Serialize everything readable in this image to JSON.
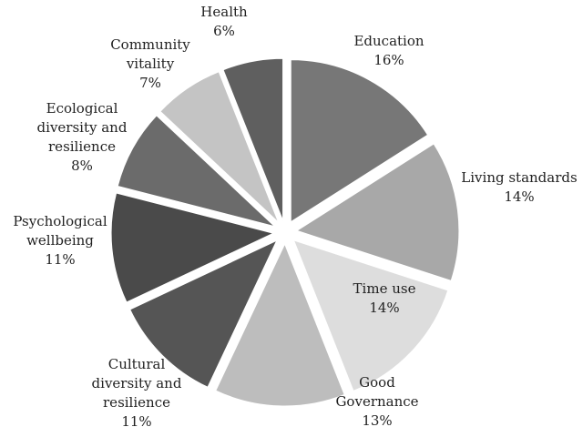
{
  "chart_data": {
    "type": "pie",
    "exploded": true,
    "title": "",
    "slices": [
      {
        "name": "Education",
        "label_lines": [
          "Education"
        ],
        "value_label": "16%",
        "value": 16,
        "color": "#777777"
      },
      {
        "name": "Living standards",
        "label_lines": [
          "Living standards"
        ],
        "value_label": "14%",
        "value": 14,
        "color": "#a8a8a8"
      },
      {
        "name": "Time use",
        "label_lines": [
          "Time use"
        ],
        "value_label": "14%",
        "value": 14,
        "color": "#dddddd"
      },
      {
        "name": "Good Governance",
        "label_lines": [
          "Good",
          "Governance"
        ],
        "value_label": "13%",
        "value": 13,
        "color": "#bdbdbd"
      },
      {
        "name": "Cultural diversity and resilience",
        "label_lines": [
          "Cultural",
          "diversity and",
          "resilience"
        ],
        "value_label": "11%",
        "value": 11,
        "color": "#555555"
      },
      {
        "name": "Psychological wellbeing",
        "label_lines": [
          "Psychological",
          "wellbeing"
        ],
        "value_label": "11%",
        "value": 11,
        "color": "#4a4a4a"
      },
      {
        "name": "Ecological diversity and resilience",
        "label_lines": [
          "Ecological",
          "diversity and",
          "resilience"
        ],
        "value_label": "8%",
        "value": 8,
        "color": "#6b6b6b"
      },
      {
        "name": "Community vitality",
        "label_lines": [
          "Community",
          "vitality"
        ],
        "value_label": "7%",
        "value": 7,
        "color": "#c4c4c4"
      },
      {
        "name": "Health",
        "label_lines": [
          "Health"
        ],
        "value_label": "6%",
        "value": 6,
        "color": "#5f5f5f"
      }
    ]
  }
}
